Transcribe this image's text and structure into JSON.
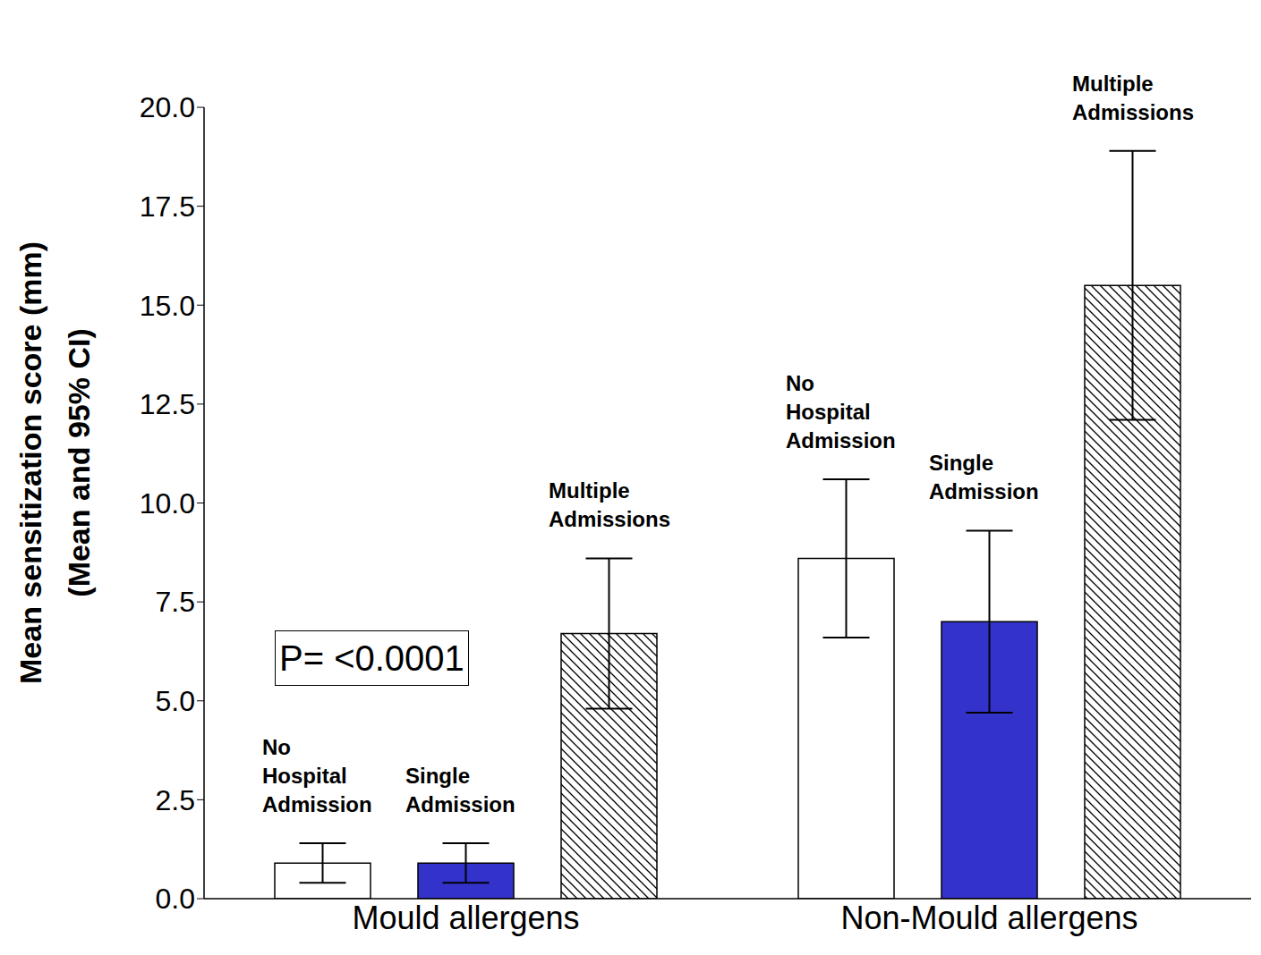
{
  "chart_data": {
    "type": "bar",
    "categories": [
      "Mould allergens",
      "Non-Mould allergens"
    ],
    "series": [
      {
        "name": "No Hospital Admission",
        "color": "#ffffff",
        "values": [
          0.9,
          8.6
        ],
        "ci_low": [
          0.4,
          6.6
        ],
        "ci_high": [
          1.4,
          10.6
        ]
      },
      {
        "name": "Single Admission",
        "color": "#3333cc",
        "values": [
          0.9,
          7.0
        ],
        "ci_low": [
          0.4,
          4.7
        ],
        "ci_high": [
          1.4,
          9.3
        ]
      },
      {
        "name": "Multiple Admissions",
        "color": "#000000",
        "values": [
          6.7,
          15.5
        ],
        "ci_low": [
          4.8,
          12.1
        ],
        "ci_high": [
          8.6,
          18.9
        ]
      }
    ],
    "y_label": [
      "Mean sensitization score (mm)",
      "(Mean and 95% CI)"
    ],
    "annotation": "P= <0.0001",
    "ylim": [
      0,
      20
    ],
    "yticks": [
      {
        "value": 0,
        "label": "0.0"
      },
      {
        "value": 2.5,
        "label": "2.5"
      },
      {
        "value": 5,
        "label": "5.0"
      },
      {
        "value": 7.5,
        "label": "7.5"
      },
      {
        "value": 10,
        "label": "10.0"
      },
      {
        "value": 12.5,
        "label": "12.5"
      },
      {
        "value": 15,
        "label": "15.0"
      },
      {
        "value": 17.5,
        "label": "17.5"
      },
      {
        "value": 20,
        "label": "20.0"
      }
    ],
    "grid": false
  }
}
